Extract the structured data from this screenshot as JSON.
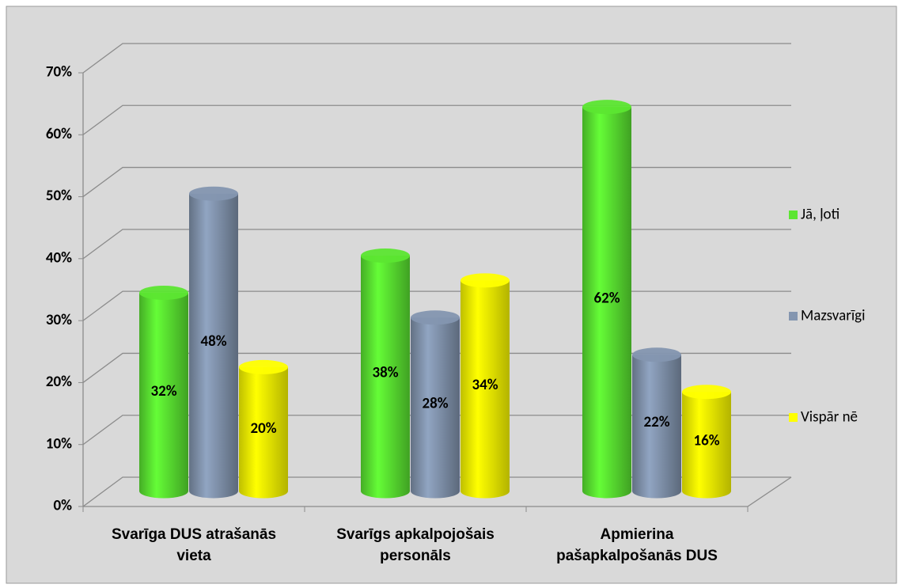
{
  "chart_data": {
    "type": "bar3d",
    "categories": [
      "Svarīga DUS atrašanās vieta",
      "Svarīgs apkalpojošais personāls",
      "Apmierina pašapkalpošanās DUS"
    ],
    "series": [
      {
        "name": "Jā, ļoti",
        "color": "#5ce632",
        "values": [
          32,
          38,
          62
        ],
        "value_labels": [
          "32%",
          "38%",
          "62%"
        ]
      },
      {
        "name": "Mazsvarīgi",
        "color": "#8496b0",
        "values": [
          48,
          28,
          22
        ],
        "value_labels": [
          "48%",
          "28%",
          "22%"
        ]
      },
      {
        "name": "Vispār nē",
        "color": "#ffff00",
        "values": [
          20,
          34,
          16
        ],
        "value_labels": [
          "20%",
          "34%",
          "16%"
        ]
      }
    ],
    "ylim": [
      0,
      70
    ],
    "yticks": [
      {
        "value": 0,
        "label": "0%"
      },
      {
        "value": 10,
        "label": "10%"
      },
      {
        "value": 20,
        "label": "20%"
      },
      {
        "value": 30,
        "label": "30%"
      },
      {
        "value": 40,
        "label": "40%"
      },
      {
        "value": 50,
        "label": "50%"
      },
      {
        "value": 60,
        "label": "60%"
      },
      {
        "value": 70,
        "label": "70%"
      }
    ],
    "grid": true,
    "legend": "right"
  }
}
